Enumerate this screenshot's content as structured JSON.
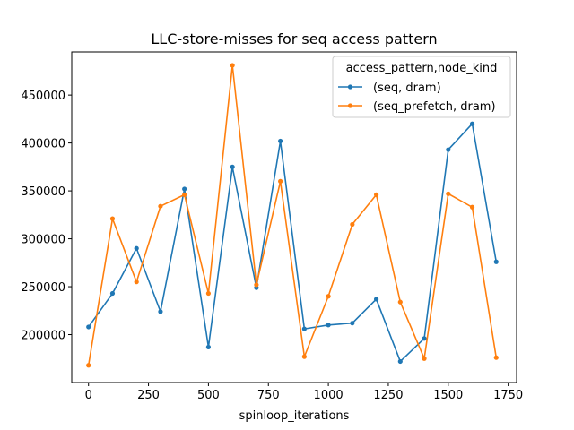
{
  "chart_data": {
    "type": "line",
    "title": "LLC-store-misses for seq access pattern",
    "xlabel": "spinloop_iterations",
    "ylabel": "",
    "xlim": [
      -70,
      1785
    ],
    "ylim": [
      150000,
      495000
    ],
    "xticks": [
      0,
      250,
      500,
      750,
      1000,
      1250,
      1500,
      1750
    ],
    "yticks": [
      200000,
      250000,
      300000,
      350000,
      400000,
      450000
    ],
    "legend": {
      "title": "access_pattern,node_kind",
      "placement": "top-right"
    },
    "grid": false,
    "x": [
      0,
      100,
      200,
      300,
      400,
      500,
      600,
      700,
      800,
      900,
      1000,
      1100,
      1200,
      1300,
      1400,
      1500,
      1600,
      1700
    ],
    "series": [
      {
        "name": "(seq, dram)",
        "color": "#1f77b4",
        "values": [
          208000,
          243000,
          290000,
          224000,
          352000,
          187000,
          375000,
          249000,
          402000,
          206000,
          210000,
          212000,
          237000,
          172000,
          196000,
          393000,
          420000,
          276000
        ]
      },
      {
        "name": "(seq_prefetch, dram)",
        "color": "#ff7f0e",
        "values": [
          168000,
          321000,
          255000,
          334000,
          346000,
          243000,
          481000,
          252000,
          360000,
          177000,
          240000,
          315000,
          346000,
          234000,
          175000,
          347000,
          333000,
          176000
        ]
      }
    ]
  }
}
